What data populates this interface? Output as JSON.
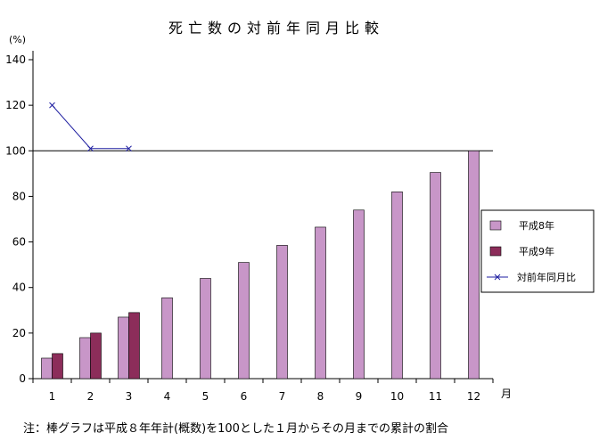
{
  "chart_data": {
    "type": "bar",
    "title": "死亡数の対前年同月比較",
    "ylabel": "(%)",
    "xlabel": "月",
    "ylim": [
      0,
      140
    ],
    "yticks": [
      0,
      20,
      40,
      60,
      80,
      100,
      120,
      140
    ],
    "reference_line": 100,
    "categories": [
      "1",
      "2",
      "3",
      "4",
      "5",
      "6",
      "7",
      "8",
      "9",
      "10",
      "11",
      "12"
    ],
    "series": [
      {
        "name": "平成8年",
        "type": "bar",
        "color": "#c896c8",
        "values": [
          9,
          18,
          27,
          35.5,
          44,
          51,
          58.5,
          66.5,
          74,
          82,
          90.5,
          100
        ]
      },
      {
        "name": "平成9年",
        "type": "bar",
        "color": "#8c2d5a",
        "values": [
          11,
          20,
          29,
          null,
          null,
          null,
          null,
          null,
          null,
          null,
          null,
          null
        ]
      },
      {
        "name": "対前年同月比",
        "type": "line",
        "color": "#1e1ea0",
        "values": [
          120,
          101,
          101,
          null,
          null,
          null,
          null,
          null,
          null,
          null,
          null,
          null
        ]
      }
    ],
    "legend_position": "right",
    "note": "注：棒グラフは平成８年年計(概数)を100とした１月からその月までの累計の割合"
  }
}
